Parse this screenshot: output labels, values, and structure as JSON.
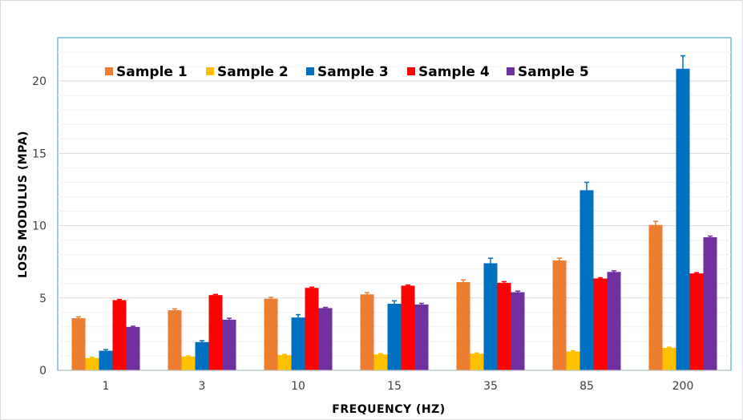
{
  "chart_data": {
    "type": "bar",
    "title": "",
    "xlabel": "FREQUENCY (HZ)",
    "ylabel": "LOSS MODULUS (MPA)",
    "categories": [
      "1",
      "3",
      "10",
      "15",
      "35",
      "85",
      "200"
    ],
    "ylim": [
      0,
      23
    ],
    "yticks": [
      0,
      5,
      10,
      15,
      20
    ],
    "grid": true,
    "legend_position": "top",
    "error_bars": true,
    "colors": [
      "#ED7D31",
      "#FFC000",
      "#0070C0",
      "#FF0000",
      "#7030A0"
    ],
    "series": [
      {
        "name": "Sample 1",
        "values": [
          3.6,
          4.15,
          4.95,
          5.25,
          6.1,
          7.6,
          10.05
        ],
        "errors": [
          0.1,
          0.1,
          0.1,
          0.12,
          0.15,
          0.15,
          0.25
        ]
      },
      {
        "name": "Sample 2",
        "values": [
          0.85,
          0.95,
          1.05,
          1.1,
          1.15,
          1.3,
          1.55
        ],
        "errors": [
          0.05,
          0.05,
          0.05,
          0.05,
          0.05,
          0.05,
          0.05
        ]
      },
      {
        "name": "Sample 3",
        "values": [
          1.35,
          1.95,
          3.65,
          4.6,
          7.4,
          12.45,
          20.85
        ],
        "errors": [
          0.08,
          0.1,
          0.2,
          0.2,
          0.35,
          0.55,
          0.9
        ]
      },
      {
        "name": "Sample 4",
        "values": [
          4.85,
          5.2,
          5.7,
          5.85,
          6.05,
          6.35,
          6.7
        ],
        "errors": [
          0.05,
          0.05,
          0.05,
          0.05,
          0.08,
          0.05,
          0.05
        ]
      },
      {
        "name": "Sample 5",
        "values": [
          3.0,
          3.5,
          4.3,
          4.55,
          5.4,
          6.8,
          9.2
        ],
        "errors": [
          0.05,
          0.1,
          0.05,
          0.08,
          0.08,
          0.08,
          0.08
        ]
      }
    ]
  }
}
